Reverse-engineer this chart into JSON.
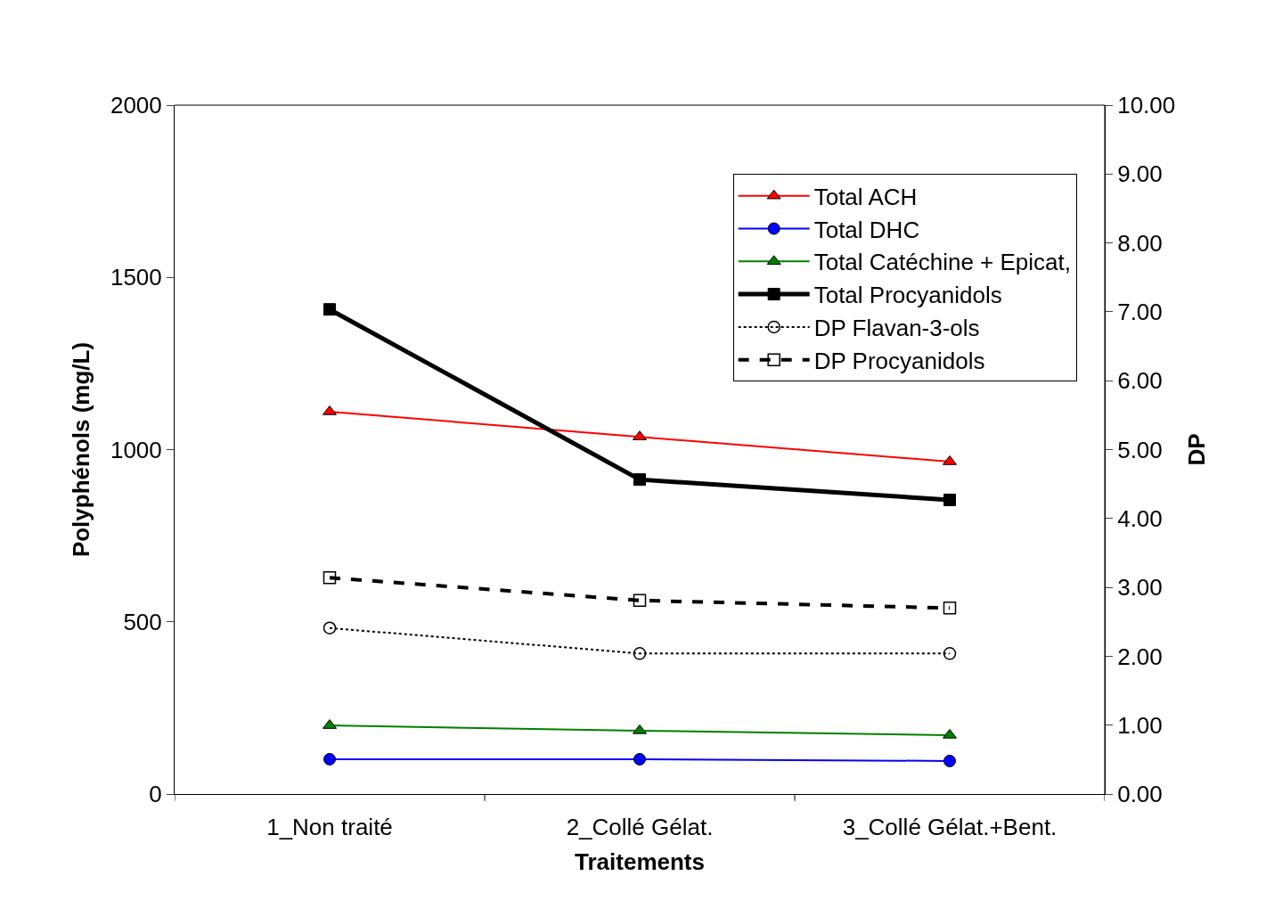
{
  "chart_data": {
    "type": "line",
    "categories": [
      "1_Non traité",
      "2_Collé Gélat.",
      "3_Collé Gélat.+Bent."
    ],
    "xlabel": "Traitements",
    "ylabel": "Polyphénols (mg/L)",
    "y2label": "DP",
    "ylim": [
      0,
      2000
    ],
    "yticks": [
      0,
      500,
      1000,
      1500,
      2000
    ],
    "y2lim": [
      0,
      10
    ],
    "y2ticks": [
      {
        "value": 0,
        "label": "0.00"
      },
      {
        "value": 1,
        "label": "1.00"
      },
      {
        "value": 2,
        "label": "2.00"
      },
      {
        "value": 3,
        "label": "3.00"
      },
      {
        "value": 4,
        "label": "4.00"
      },
      {
        "value": 5,
        "label": "5.00"
      },
      {
        "value": 6,
        "label": "6.00"
      },
      {
        "value": 7,
        "label": "7.00"
      },
      {
        "value": 8,
        "label": "8.00"
      },
      {
        "value": 9,
        "label": "9.00"
      },
      {
        "value": 10,
        "label": "10.00"
      }
    ],
    "legend": "top right",
    "series": [
      {
        "name": "Total ACH",
        "color": "#ff0000",
        "marker": "triangle",
        "line_style": "solid",
        "values": [
          1110,
          1037,
          965
        ]
      },
      {
        "name": "Total DHC",
        "color": "#0000ff",
        "marker": "circle",
        "line_style": "solid",
        "values": [
          101,
          101,
          96
        ]
      },
      {
        "name": "Total Catéchine + Epicat,",
        "color": "#008000",
        "marker": "triangle",
        "line_style": "solid",
        "values": [
          199,
          184,
          171
        ]
      },
      {
        "name": "Total Procyanidols",
        "color": "#000000",
        "marker": "square",
        "line_style": "solid",
        "values": [
          1407,
          913,
          854
        ]
      },
      {
        "name": "DP Flavan-3-ols",
        "color": "#000000",
        "marker": "circle",
        "line_style": "dotted",
        "axis": "y2",
        "values": [
          2.41,
          2.04,
          2.04
        ]
      },
      {
        "name": "DP Procyanidols",
        "color": "#000000",
        "marker": "square",
        "line_style": "dashed",
        "axis": "y2",
        "values": [
          3.14,
          2.81,
          2.7
        ]
      }
    ]
  }
}
